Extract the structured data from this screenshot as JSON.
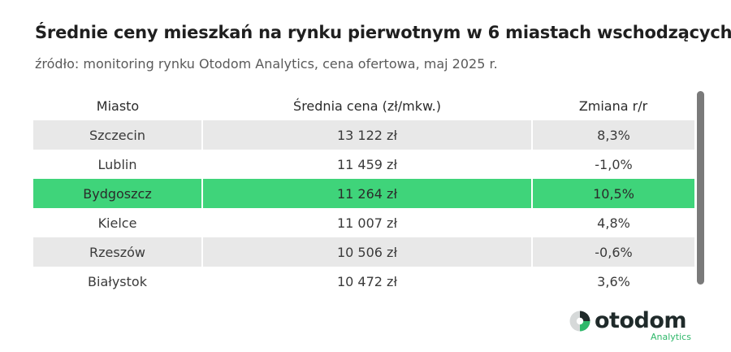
{
  "header": {
    "title": "Średnie ceny mieszkań na rynku pierwotnym w 6 miastach wschodzących",
    "subtitle": "źródło: monitoring rynku Otodom Analytics, cena ofertowa, maj 2025 r."
  },
  "table": {
    "columns": [
      "Miasto",
      "Średnia cena (zł/mkw.)",
      "Zmiana r/r"
    ],
    "rows": [
      {
        "city": "Szczecin",
        "price": "13 122 zł",
        "change": "8,3%"
      },
      {
        "city": "Lublin",
        "price": "11 459 zł",
        "change": "-1,0%"
      },
      {
        "city": "Bydgoszcz",
        "price": "11 264 zł",
        "change": "10,5%"
      },
      {
        "city": "Kielce",
        "price": "11 007 zł",
        "change": "4,8%"
      },
      {
        "city": "Rzeszów",
        "price": "10 506 zł",
        "change": "-0,6%"
      },
      {
        "city": "Białystok",
        "price": "10 472 zł",
        "change": "3,6%"
      }
    ],
    "highlight_color": "#3fd47a",
    "shade_color": "#e8e8e8"
  },
  "logo": {
    "name": "otodom",
    "sub": "Analytics",
    "brand_color": "#2fb86a"
  }
}
